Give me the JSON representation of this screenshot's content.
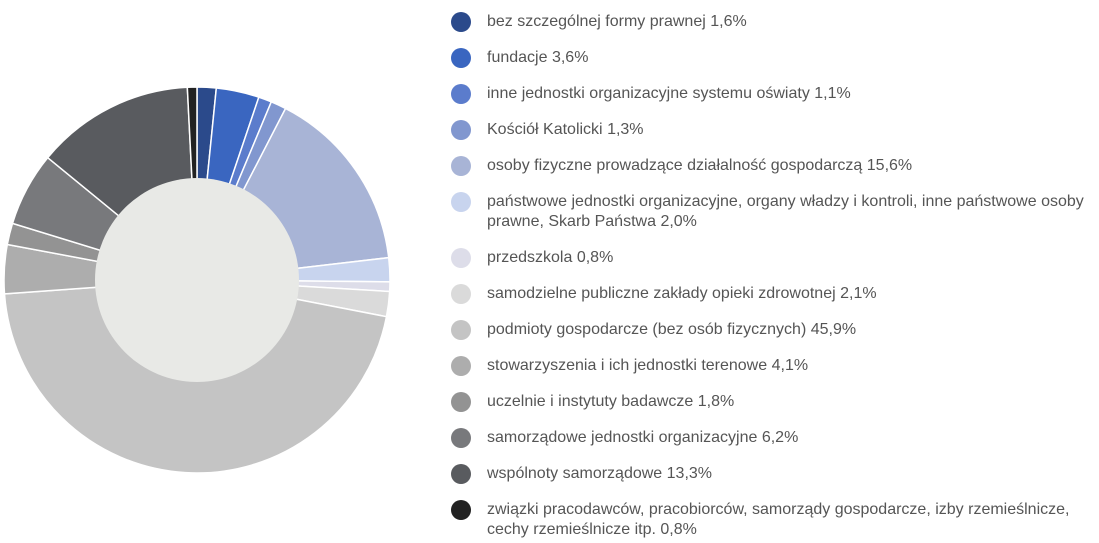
{
  "chart_data": {
    "type": "donut",
    "categories": [
      "bez szczególnej formy prawnej",
      "fundacje",
      "inne jednostki organizacyjne systemu oświaty",
      "Kościół Katolicki",
      "osoby fizyczne prowadzące działalność gospodarczą",
      "państwowe jednostki organizacyjne, organy władzy i kontroli, inne państwowe osoby prawne, Skarb Państwa",
      "przedszkola",
      "samodzielne publiczne zakłady opieki zdrowotnej",
      "podmioty gospodarcze (bez osób fizycznych)",
      "stowarzyszenia i ich jednostki terenowe",
      "uczelnie i instytuty badawcze",
      "samorządowe jednostki organizacyjne",
      "wspólnoty samorządowe",
      "związki pracodawców, pracobiorców, samorządy gospodarcze, izby rzemieślnicze, cechy rzemieślnicze itp."
    ],
    "values": [
      1.6,
      3.6,
      1.1,
      1.3,
      15.6,
      2.0,
      0.8,
      2.1,
      45.9,
      4.1,
      1.8,
      6.2,
      13.3,
      0.8
    ],
    "value_labels": [
      "1,6%",
      "3,6%",
      "1,1%",
      "1,3%",
      "15,6%",
      "2,0%",
      "0,8%",
      "2,1%",
      "45,9%",
      "4,1%",
      "1,8%",
      "6,2%",
      "13,3%",
      "0,8%"
    ],
    "colors": [
      "#2b4a8b",
      "#3a66c0",
      "#5b7ccc",
      "#8197cf",
      "#a8b4d6",
      "#c8d4ee",
      "#dddde9",
      "#dadada",
      "#c4c4c4",
      "#adadad",
      "#939393",
      "#78797c",
      "#595b5f",
      "#222222"
    ],
    "legend": "right"
  }
}
